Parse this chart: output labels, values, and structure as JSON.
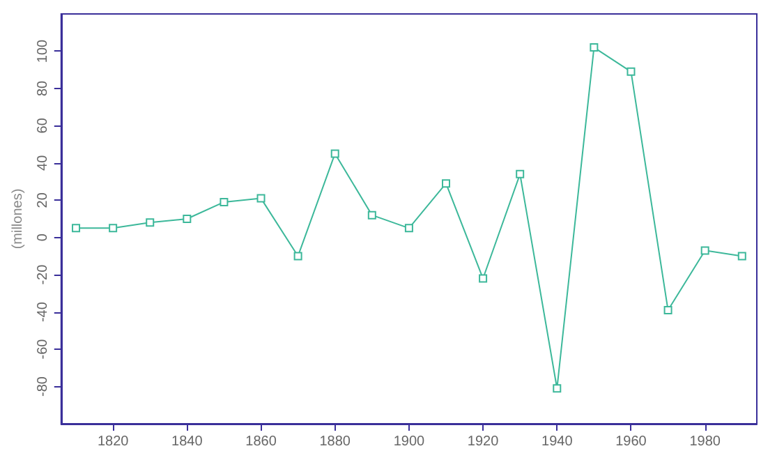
{
  "chart_data": {
    "type": "line",
    "ylabel": "(millones)",
    "x": [
      1810,
      1820,
      1830,
      1840,
      1850,
      1860,
      1870,
      1880,
      1890,
      1900,
      1910,
      1920,
      1930,
      1940,
      1950,
      1960,
      1970,
      1980,
      1990
    ],
    "series": [
      {
        "color": "#3cb89a",
        "values": [
          5,
          5,
          8,
          10,
          19,
          21,
          -10,
          45,
          12,
          5,
          29,
          -22,
          34,
          -81,
          102,
          89,
          -39,
          -7,
          -10
        ]
      }
    ],
    "xlim": [
      1806,
      1994
    ],
    "xticks": [
      1820,
      1840,
      1860,
      1880,
      1900,
      1920,
      1940,
      1960,
      1980
    ],
    "ylim": [
      -100,
      120
    ],
    "yticks": [
      -80,
      -60,
      -40,
      -20,
      0,
      20,
      40,
      60,
      80,
      100
    ],
    "grid": false,
    "marker": "square",
    "line_style": "solid"
  }
}
